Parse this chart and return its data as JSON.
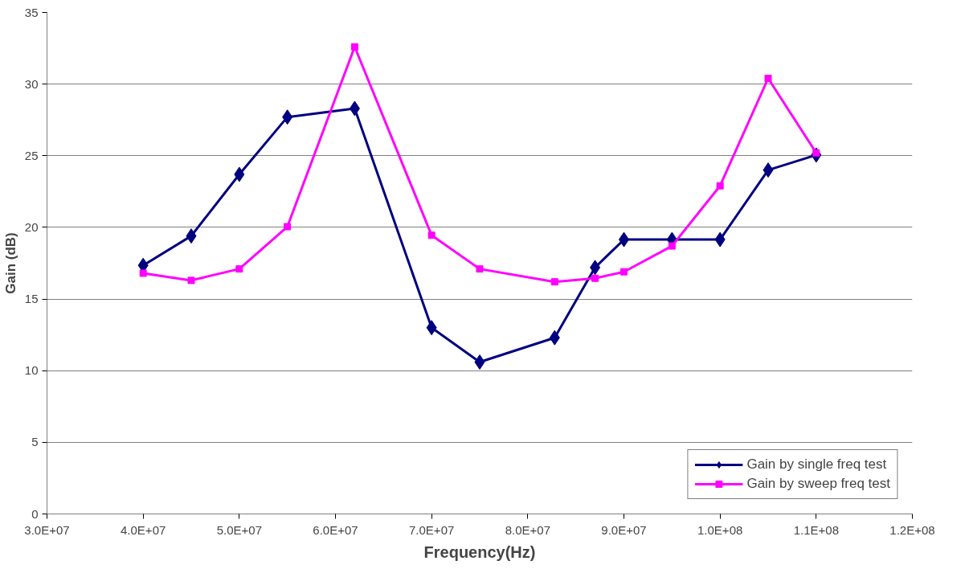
{
  "chart_data": {
    "type": "line",
    "xlabel": "Frequency(Hz)",
    "ylabel": "Gain (dB)",
    "x": [
      40000000,
      45000000,
      50000000,
      55000000,
      62000000,
      70000000,
      75000000,
      82800000,
      87000000,
      90000000,
      95000000,
      100000000,
      105000000,
      110000000
    ],
    "series": [
      {
        "name": "Gain by single freq test",
        "color": "#000080",
        "marker": "diamond",
        "values": [
          17.35,
          19.4,
          23.7,
          27.7,
          28.3,
          13.0,
          10.6,
          12.3,
          17.2,
          19.15,
          19.15,
          19.15,
          24.0,
          25.05
        ]
      },
      {
        "name": "Gain by sweep freq test",
        "color": "#ff00ff",
        "marker": "square",
        "values": [
          16.8,
          16.3,
          17.1,
          20.05,
          32.6,
          19.45,
          17.1,
          16.2,
          16.45,
          16.9,
          18.7,
          22.9,
          30.4,
          25.2
        ]
      }
    ],
    "xlim": [
      30000000,
      120000000
    ],
    "xticks": [
      {
        "value": 30000000,
        "label": "3.0E+07"
      },
      {
        "value": 40000000,
        "label": "4.0E+07"
      },
      {
        "value": 50000000,
        "label": "5.0E+07"
      },
      {
        "value": 60000000,
        "label": "6.0E+07"
      },
      {
        "value": 70000000,
        "label": "7.0E+07"
      },
      {
        "value": 80000000,
        "label": "8.0E+07"
      },
      {
        "value": 90000000,
        "label": "9.0E+07"
      },
      {
        "value": 100000000,
        "label": "1.0E+08"
      },
      {
        "value": 110000000,
        "label": "1.1E+08"
      },
      {
        "value": 120000000,
        "label": "1.2E+08"
      }
    ],
    "ylim": [
      0,
      35
    ],
    "yticks": [
      0,
      5,
      10,
      15,
      20,
      25,
      30,
      35
    ],
    "grid": "y",
    "legend": "bottom right",
    "line_style": "solid"
  }
}
